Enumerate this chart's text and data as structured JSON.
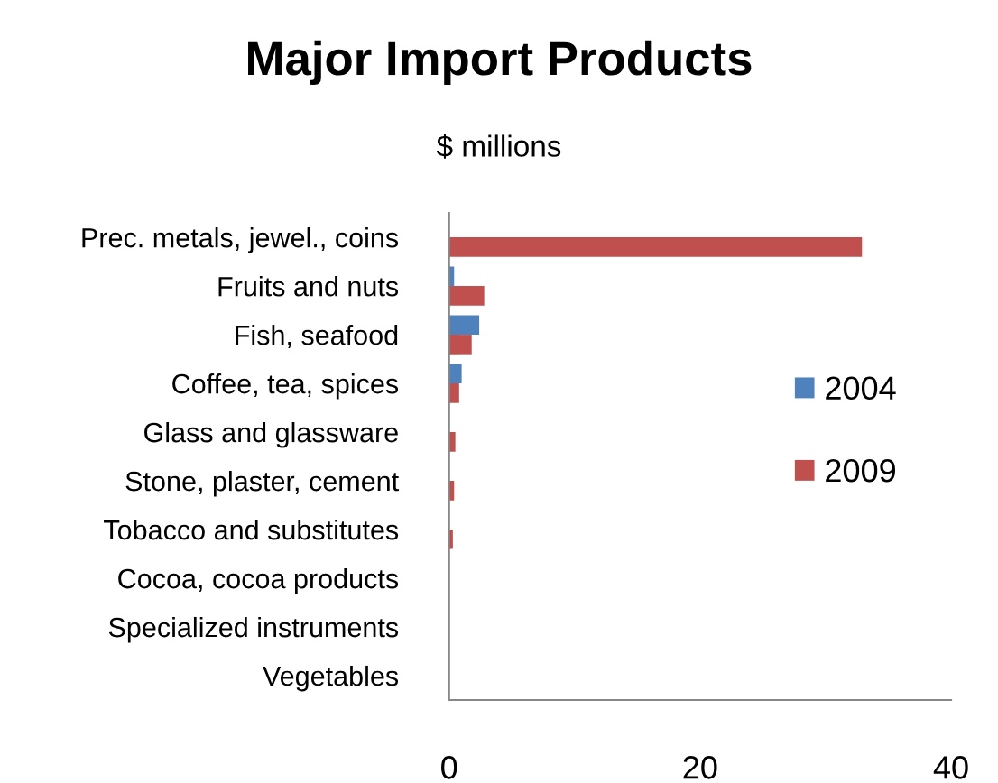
{
  "chart_data": {
    "type": "bar",
    "orientation": "horizontal",
    "title": "Major Import Products",
    "subtitle": "$ millions",
    "categories": [
      "Prec. metals, jewel., coins",
      "Fruits and nuts",
      "Fish, seafood",
      "Coffee, tea, spices",
      "Glass and glassware",
      "Stone, plaster, cement",
      "Tobacco and substitutes",
      "Cocoa, cocoa products",
      "Specialized instruments",
      "Vegetables"
    ],
    "series": [
      {
        "name": "2004",
        "color": "#4f81bd",
        "values": [
          0,
          0.4,
          2.4,
          1.0,
          0,
          0,
          0,
          0,
          0,
          0
        ]
      },
      {
        "name": "2009",
        "color": "#c0504d",
        "values": [
          32.9,
          2.8,
          1.8,
          0.8,
          0.5,
          0.4,
          0.3,
          0,
          0,
          0
        ]
      }
    ],
    "xlim": [
      0,
      40
    ],
    "xticks": [
      0,
      20,
      40
    ],
    "grid": false,
    "legend": "right"
  }
}
